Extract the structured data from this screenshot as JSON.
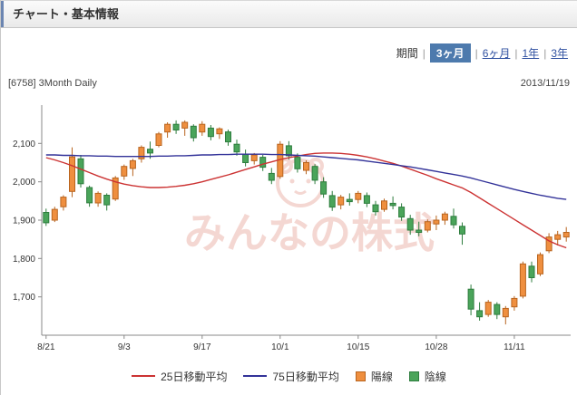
{
  "header": {
    "title": "チャート・基本情報"
  },
  "period": {
    "label": "期間",
    "separator": "|",
    "options": [
      {
        "label": "3ヶ月",
        "active": true
      },
      {
        "label": "6ヶ月",
        "active": false
      },
      {
        "label": "1年",
        "active": false
      },
      {
        "label": "3年",
        "active": false
      }
    ]
  },
  "chart_header": {
    "code_label": "[6758] 3Month Daily",
    "date": "2013/11/19"
  },
  "watermark": {
    "text": "みんなの株式"
  },
  "legend": {
    "ma25": "25日移動平均",
    "ma75": "75日移動平均",
    "bullish": "陽線",
    "bearish": "陰線"
  },
  "colors": {
    "accent_blue": "#4d7aad",
    "link_blue": "#2f50a0",
    "ma25_red": "#cc3333",
    "ma75_blue": "#333399",
    "bullish_orange": "#ef8f3f",
    "bullish_border": "#b8641f",
    "bearish_green": "#4aa45a",
    "bearish_border": "#2e7d3e",
    "watermark_pink": "#eab0a6"
  },
  "chart_data": {
    "type": "candlestick",
    "title": "[6758] 3Month Daily",
    "as_of_date": "2013/11/19",
    "ylim": [
      1600,
      2200
    ],
    "y_ticks": [
      1700,
      1800,
      1900,
      2000,
      2100
    ],
    "x_tick_labels": [
      "8/21",
      "9/3",
      "9/17",
      "10/1",
      "10/15",
      "10/28",
      "11/11"
    ],
    "x_tick_indices": [
      0,
      9,
      18,
      27,
      36,
      45,
      54
    ],
    "grid": false,
    "legend_position": "bottom",
    "dates": [
      "8/21",
      "8/22",
      "8/23",
      "8/26",
      "8/27",
      "8/28",
      "8/29",
      "8/30",
      "9/2",
      "9/3",
      "9/4",
      "9/5",
      "9/6",
      "9/9",
      "9/10",
      "9/11",
      "9/12",
      "9/13",
      "9/17",
      "9/18",
      "9/19",
      "9/20",
      "9/24",
      "9/25",
      "9/26",
      "9/27",
      "9/30",
      "10/1",
      "10/2",
      "10/3",
      "10/4",
      "10/7",
      "10/8",
      "10/9",
      "10/10",
      "10/11",
      "10/15",
      "10/16",
      "10/17",
      "10/18",
      "10/21",
      "10/22",
      "10/23",
      "10/24",
      "10/25",
      "10/28",
      "10/29",
      "10/30",
      "10/31",
      "11/1",
      "11/5",
      "11/6",
      "11/7",
      "11/8",
      "11/11",
      "11/12",
      "11/13",
      "11/14",
      "11/15",
      "11/18",
      "11/19"
    ],
    "ohlc": [
      [
        1920,
        1930,
        1885,
        1893
      ],
      [
        1900,
        1935,
        1895,
        1928
      ],
      [
        1935,
        1965,
        1925,
        1960
      ],
      [
        1975,
        2090,
        1960,
        2065
      ],
      [
        2060,
        2070,
        1985,
        1995
      ],
      [
        1985,
        1990,
        1935,
        1945
      ],
      [
        1945,
        1975,
        1935,
        1970
      ],
      [
        1965,
        1970,
        1925,
        1940
      ],
      [
        1955,
        2015,
        1950,
        2010
      ],
      [
        2015,
        2045,
        2005,
        2040
      ],
      [
        2035,
        2060,
        2015,
        2055
      ],
      [
        2060,
        2095,
        2050,
        2090
      ],
      [
        2085,
        2105,
        2060,
        2075
      ],
      [
        2095,
        2130,
        2090,
        2125
      ],
      [
        2130,
        2155,
        2115,
        2150
      ],
      [
        2150,
        2160,
        2125,
        2135
      ],
      [
        2140,
        2160,
        2120,
        2155
      ],
      [
        2145,
        2150,
        2105,
        2115
      ],
      [
        2130,
        2158,
        2120,
        2150
      ],
      [
        2140,
        2148,
        2108,
        2118
      ],
      [
        2125,
        2142,
        2112,
        2138
      ],
      [
        2130,
        2136,
        2094,
        2104
      ],
      [
        2098,
        2110,
        2068,
        2078
      ],
      [
        2072,
        2084,
        2040,
        2050
      ],
      [
        2055,
        2075,
        2045,
        2070
      ],
      [
        2064,
        2070,
        2028,
        2038
      ],
      [
        2022,
        2036,
        1994,
        2004
      ],
      [
        2014,
        2106,
        2008,
        2098
      ],
      [
        2094,
        2106,
        2058,
        2068
      ],
      [
        2064,
        2074,
        2024,
        2034
      ],
      [
        2030,
        2056,
        2020,
        2050
      ],
      [
        2040,
        2046,
        1994,
        2004
      ],
      [
        2000,
        2012,
        1958,
        1968
      ],
      [
        1964,
        1976,
        1924,
        1934
      ],
      [
        1940,
        1966,
        1928,
        1960
      ],
      [
        1954,
        1970,
        1938,
        1948
      ],
      [
        1954,
        1976,
        1944,
        1970
      ],
      [
        1964,
        1972,
        1934,
        1944
      ],
      [
        1940,
        1950,
        1912,
        1922
      ],
      [
        1928,
        1956,
        1922,
        1950
      ],
      [
        1944,
        1962,
        1928,
        1938
      ],
      [
        1934,
        1944,
        1898,
        1908
      ],
      [
        1904,
        1914,
        1862,
        1874
      ],
      [
        1874,
        1896,
        1858,
        1868
      ],
      [
        1874,
        1902,
        1868,
        1896
      ],
      [
        1890,
        1912,
        1874,
        1900
      ],
      [
        1900,
        1922,
        1888,
        1916
      ],
      [
        1910,
        1930,
        1878,
        1888
      ],
      [
        1884,
        1894,
        1836,
        1864
      ],
      [
        1720,
        1732,
        1652,
        1668
      ],
      [
        1664,
        1686,
        1638,
        1648
      ],
      [
        1654,
        1692,
        1648,
        1686
      ],
      [
        1680,
        1686,
        1642,
        1654
      ],
      [
        1648,
        1676,
        1628,
        1670
      ],
      [
        1674,
        1702,
        1664,
        1696
      ],
      [
        1702,
        1792,
        1696,
        1786
      ],
      [
        1780,
        1792,
        1738,
        1750
      ],
      [
        1760,
        1816,
        1754,
        1810
      ],
      [
        1820,
        1866,
        1814,
        1856
      ],
      [
        1850,
        1872,
        1834,
        1862
      ],
      [
        1856,
        1882,
        1844,
        1868
      ]
    ],
    "series": [
      {
        "name": "25日移動平均",
        "color": "#cc3333",
        "values": [
          2063,
          2057,
          2050,
          2042,
          2033,
          2024,
          2015,
          2007,
          2000,
          1994,
          1990,
          1987,
          1985,
          1985,
          1986,
          1988,
          1991,
          1995,
          2000,
          2006,
          2012,
          2018,
          2025,
          2032,
          2039,
          2046,
          2052,
          2058,
          2063,
          2067,
          2071,
          2074,
          2075,
          2075,
          2074,
          2072,
          2069,
          2065,
          2060,
          2054,
          2048,
          2041,
          2033,
          2025,
          2017,
          2008,
          2000,
          1992,
          1984,
          1972,
          1958,
          1944,
          1930,
          1916,
          1902,
          1888,
          1874,
          1860,
          1846,
          1836,
          1828
        ]
      },
      {
        "name": "75日移動平均",
        "color": "#333399",
        "values": [
          2070,
          2070,
          2069,
          2069,
          2068,
          2068,
          2067,
          2067,
          2066,
          2066,
          2066,
          2066,
          2066,
          2067,
          2067,
          2068,
          2068,
          2069,
          2070,
          2070,
          2071,
          2071,
          2072,
          2072,
          2072,
          2072,
          2071,
          2071,
          2070,
          2069,
          2068,
          2067,
          2065,
          2063,
          2061,
          2059,
          2057,
          2054,
          2051,
          2048,
          2045,
          2042,
          2039,
          2035,
          2031,
          2027,
          2023,
          2019,
          2015,
          2010,
          2004,
          1998,
          1992,
          1986,
          1980,
          1975,
          1970,
          1965,
          1961,
          1957,
          1954
        ]
      }
    ]
  }
}
